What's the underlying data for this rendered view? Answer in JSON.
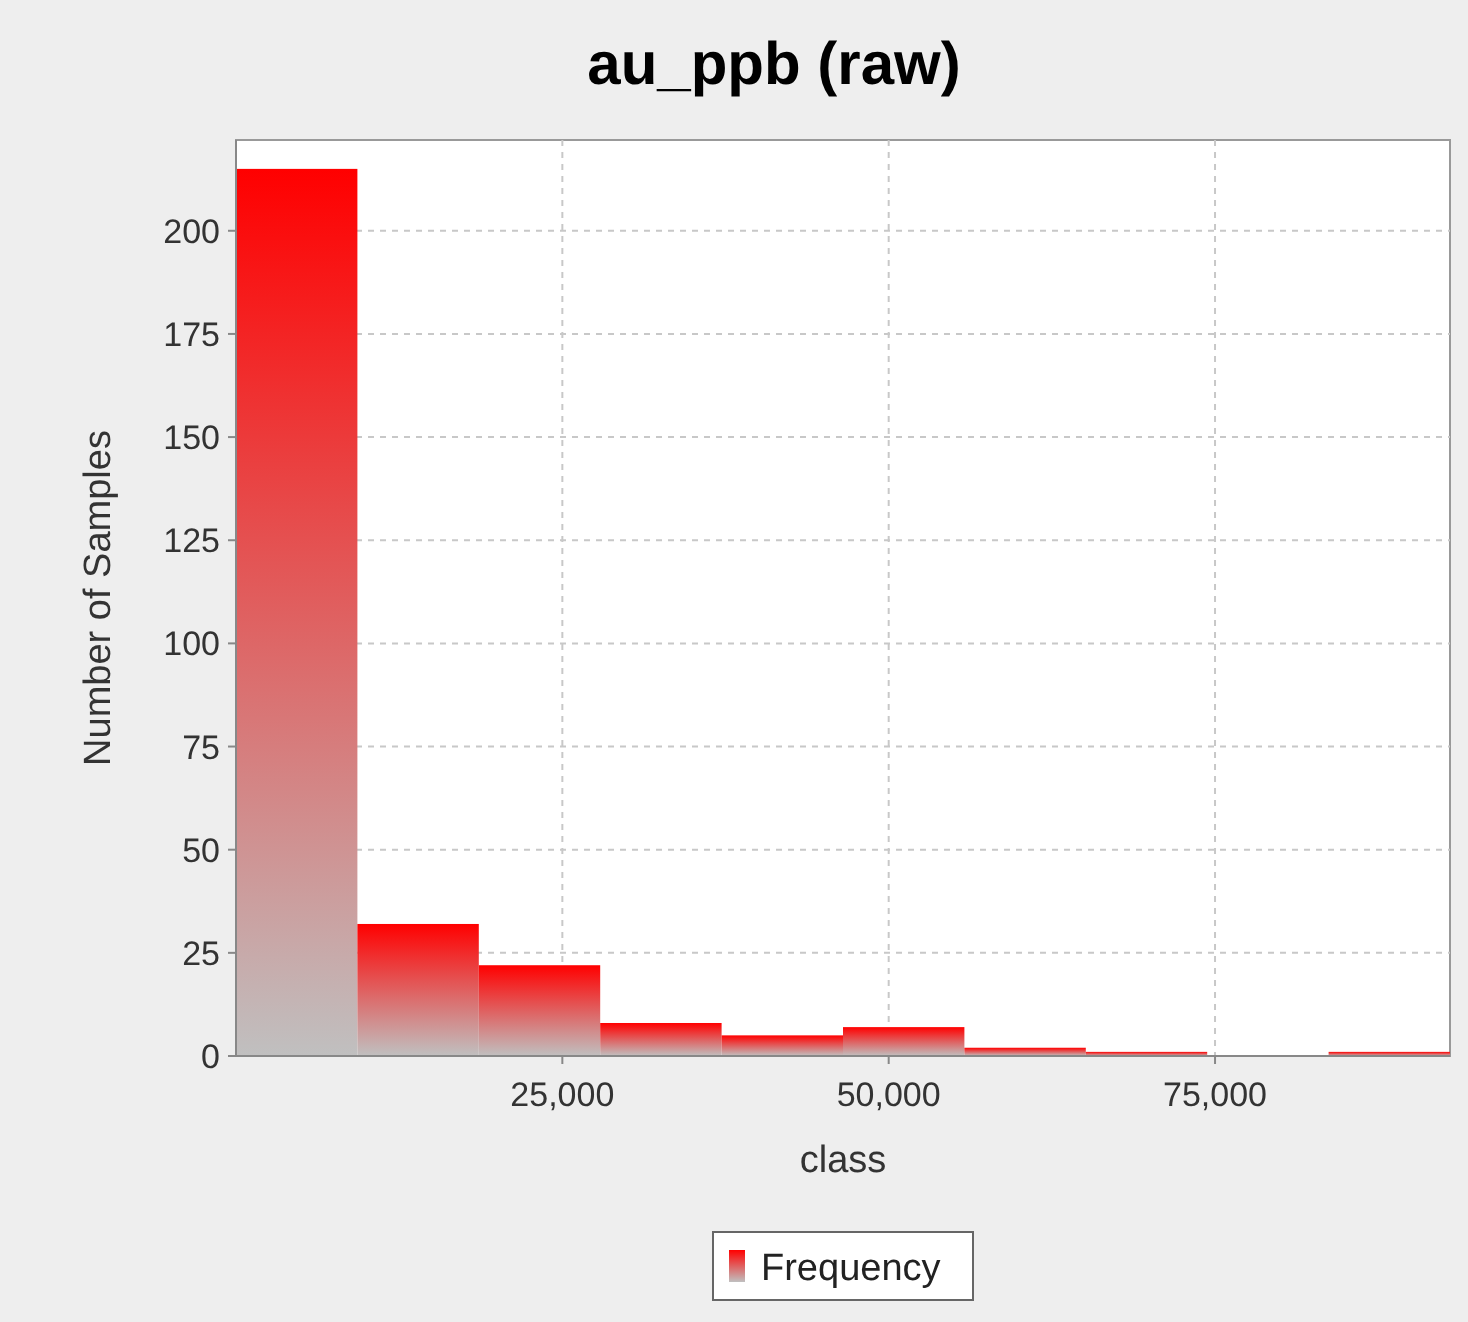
{
  "chart_data": {
    "type": "histogram",
    "title": "au_ppb (raw)",
    "xlabel": "class",
    "ylabel": "Number of Samples",
    "bins": [
      0,
      9300,
      18600,
      27900,
      37200,
      46500,
      55800,
      65100,
      74400,
      83700,
      93000
    ],
    "series": [
      {
        "name": "Frequency",
        "color": "#ff0000",
        "values": [
          215,
          32,
          22,
          8,
          5,
          7,
          2,
          1,
          0,
          1
        ]
      }
    ],
    "xlim": [
      0,
      93000
    ],
    "xticks": [
      {
        "value": 25000,
        "label": "25,000"
      },
      {
        "value": 50000,
        "label": "50,000"
      },
      {
        "value": 75000,
        "label": "75,000"
      }
    ],
    "ylim": [
      0,
      222
    ],
    "yticks": [
      0,
      25,
      50,
      75,
      100,
      125,
      150,
      175,
      200
    ],
    "grid": true,
    "legend": "bottom"
  }
}
